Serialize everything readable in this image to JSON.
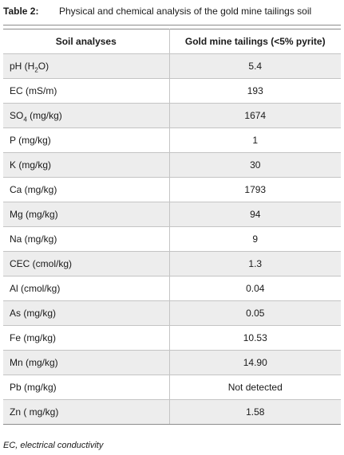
{
  "caption": {
    "label": "Table 2:",
    "title": "Physical and chemical analysis of the gold mine tailings soil"
  },
  "table": {
    "headers": [
      "Soil analyses",
      "Gold mine tailings (<5% pyrite)"
    ],
    "rows": [
      {
        "analysis": "pH (H2O)",
        "pre": "pH (H",
        "sub": "2",
        "post": "O)",
        "value": "5.4"
      },
      {
        "analysis": "EC (mS/m)",
        "value": "193"
      },
      {
        "analysis": "SO4 (mg/kg)",
        "pre": "SO",
        "sub": "4",
        "post": " (mg/kg)",
        "value": "1674"
      },
      {
        "analysis": "P (mg/kg)",
        "value": "1"
      },
      {
        "analysis": "K (mg/kg)",
        "value": "30"
      },
      {
        "analysis": "Ca (mg/kg)",
        "value": "1793"
      },
      {
        "analysis": "Mg (mg/kg)",
        "value": "94"
      },
      {
        "analysis": "Na (mg/kg)",
        "value": "9"
      },
      {
        "analysis": "CEC (cmol/kg)",
        "value": "1.3"
      },
      {
        "analysis": "Al (cmol/kg)",
        "value": "0.04"
      },
      {
        "analysis": "As (mg/kg)",
        "value": "0.05"
      },
      {
        "analysis": "Fe (mg/kg)",
        "value": "10.53"
      },
      {
        "analysis": "Mn (mg/kg)",
        "value": "14.90"
      },
      {
        "analysis": "Pb (mg/kg)",
        "value": "Not detected"
      },
      {
        "analysis": "Zn ( mg/kg)",
        "value": "1.58"
      }
    ]
  },
  "footnote": "EC, electrical conductivity"
}
